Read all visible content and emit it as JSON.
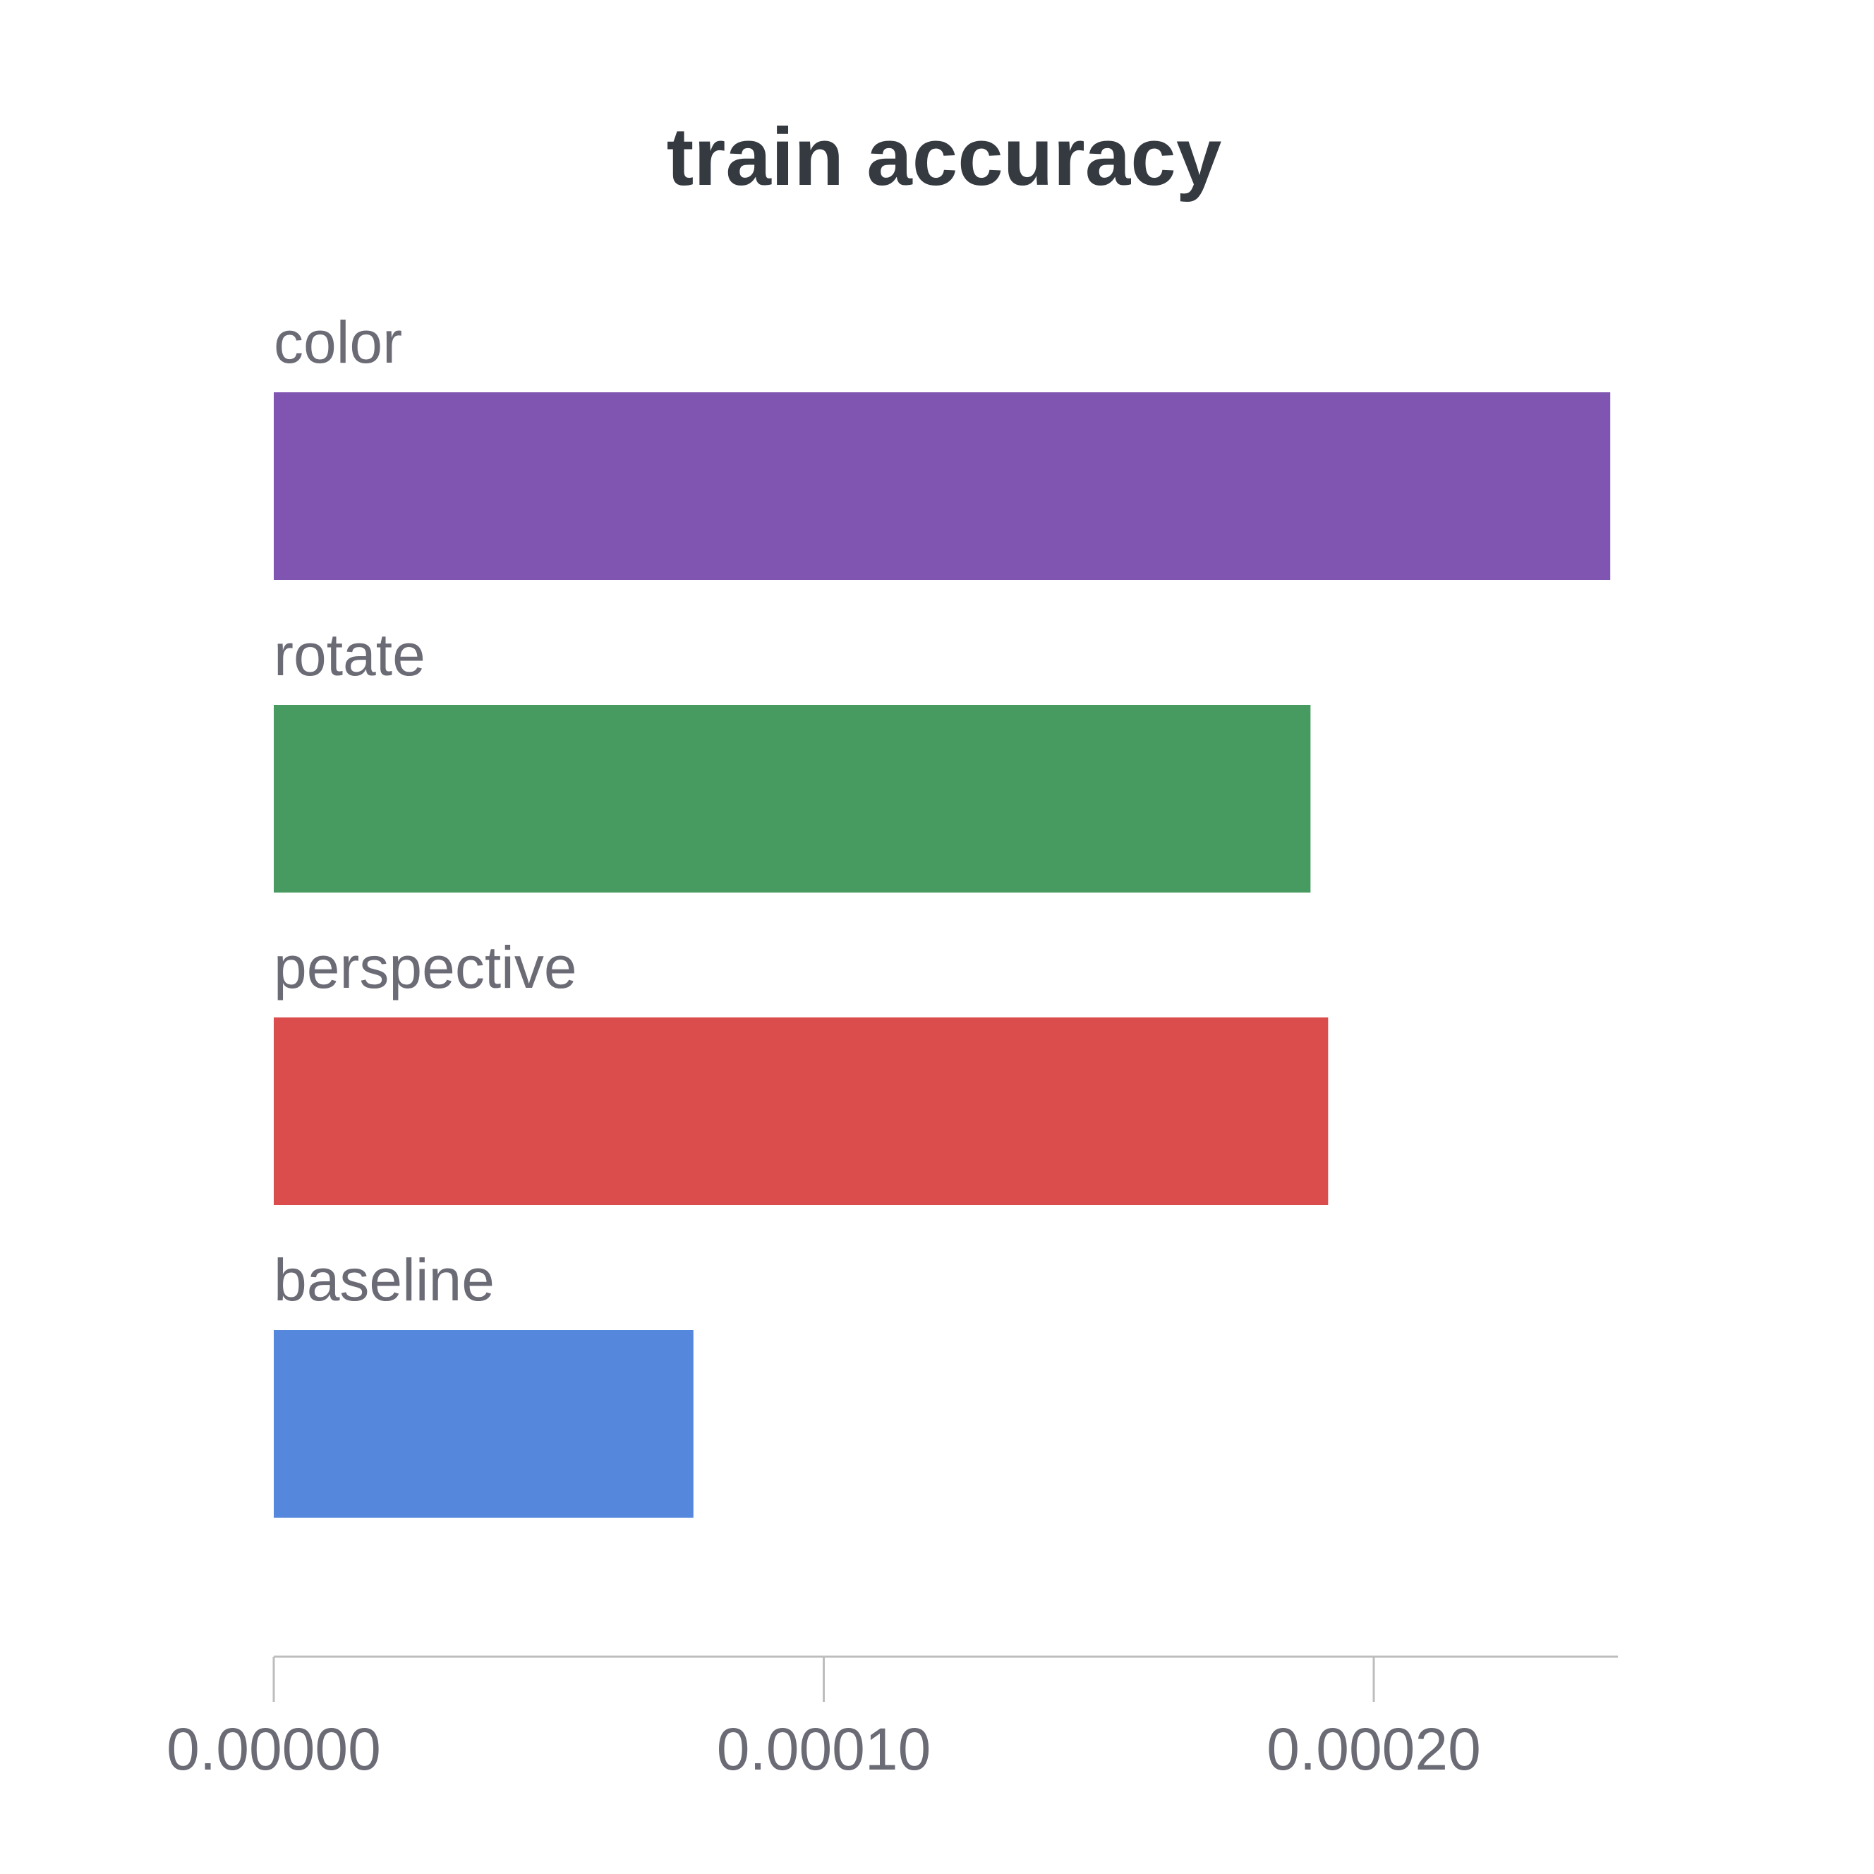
{
  "chart_data": {
    "type": "bar",
    "orientation": "horizontal",
    "title": "train accuracy",
    "xlabel": "",
    "ylabel": "",
    "categories": [
      "color",
      "rotate",
      "perspective",
      "baseline"
    ],
    "values": [
      0.000243,
      0.0001885,
      0.0001917,
      7.63e-05
    ],
    "colors": [
      "#7f55b1",
      "#489b60",
      "#da4d4c",
      "#5588dd"
    ],
    "xlim": [
      0,
      0.000244
    ],
    "xticks": [
      0,
      0.0001,
      0.0002
    ],
    "xtick_labels": [
      "0.00000",
      "0.00010",
      "0.00020"
    ],
    "grid": false,
    "legend": "none"
  }
}
